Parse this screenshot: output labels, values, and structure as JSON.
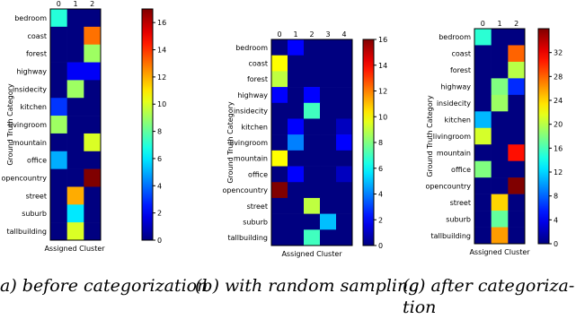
{
  "chart_data": [
    {
      "type": "heatmap",
      "caption": "a) before categorization",
      "xlabel": "Assigned Cluster",
      "ylabel": "Ground Truth Category",
      "x_ticks": [
        "0",
        "1",
        "2"
      ],
      "rows": [
        "bedroom",
        "coast",
        "forest",
        "highway",
        "insidecity",
        "kitchen",
        "livingroom",
        "mountain",
        "office",
        "opencountry",
        "street",
        "suburb",
        "tallbuilding"
      ],
      "values": [
        [
          7,
          0,
          0
        ],
        [
          0,
          0,
          13
        ],
        [
          0,
          0,
          9
        ],
        [
          0,
          2,
          2
        ],
        [
          0,
          9,
          0
        ],
        [
          3,
          0,
          0
        ],
        [
          9,
          0,
          0
        ],
        [
          0,
          0,
          10
        ],
        [
          5,
          0,
          0
        ],
        [
          0,
          0,
          17
        ],
        [
          0,
          12,
          0
        ],
        [
          0,
          6,
          0
        ],
        [
          0,
          10,
          0
        ]
      ],
      "colorbar": {
        "min": 0,
        "max": 17,
        "ticks": [
          0,
          2,
          4,
          6,
          8,
          10,
          12,
          14,
          16
        ]
      }
    },
    {
      "type": "heatmap",
      "caption": "(b) with random sampling",
      "xlabel": "Assigned Cluster",
      "ylabel": "Ground Truth Category",
      "x_ticks": [
        "0",
        "1",
        "2",
        "3",
        "4"
      ],
      "rows": [
        "bedroom",
        "coast",
        "forest",
        "highway",
        "insidecity",
        "kitchen",
        "livingroom",
        "mountain",
        "office",
        "opencountry",
        "street",
        "suburb",
        "tallbuilding"
      ],
      "values": [
        [
          0,
          2,
          0,
          0,
          0
        ],
        [
          10,
          0,
          0,
          0,
          0
        ],
        [
          9,
          0,
          0,
          0,
          0
        ],
        [
          2,
          0,
          2,
          0,
          0
        ],
        [
          0,
          0,
          7,
          0,
          0
        ],
        [
          0,
          2,
          0,
          0,
          1
        ],
        [
          0,
          4,
          0,
          0,
          2
        ],
        [
          10,
          0,
          0,
          0,
          0
        ],
        [
          0,
          2,
          0,
          0,
          1
        ],
        [
          16,
          0,
          0,
          0,
          0
        ],
        [
          0,
          0,
          9,
          0,
          0
        ],
        [
          0,
          0,
          0,
          5,
          0
        ],
        [
          0,
          0,
          7,
          0,
          0
        ]
      ],
      "colorbar": {
        "min": 0,
        "max": 16,
        "ticks": [
          0,
          2,
          4,
          6,
          8,
          10,
          12,
          14,
          16
        ]
      }
    },
    {
      "type": "heatmap",
      "caption": "(c)  after  categoriza-tion",
      "xlabel": "Assigned Cluster",
      "ylabel": "Ground Truth Category",
      "x_ticks": [
        "0",
        "1",
        "2"
      ],
      "rows": [
        "bedroom",
        "coast",
        "forest",
        "highway",
        "insidecity",
        "kitchen",
        "livingroom",
        "mountain",
        "office",
        "opencountry",
        "street",
        "suburb",
        "tallbuilding"
      ],
      "values": [
        [
          15,
          0,
          0
        ],
        [
          0,
          0,
          28
        ],
        [
          0,
          0,
          20
        ],
        [
          0,
          18,
          6
        ],
        [
          0,
          19,
          0
        ],
        [
          11,
          0,
          0
        ],
        [
          21,
          0,
          0
        ],
        [
          0,
          0,
          31
        ],
        [
          18,
          0,
          0
        ],
        [
          0,
          0,
          36
        ],
        [
          0,
          24,
          0
        ],
        [
          0,
          17,
          0
        ],
        [
          0,
          26,
          0
        ]
      ],
      "colorbar": {
        "min": 0,
        "max": 36,
        "ticks": [
          0,
          4,
          8,
          12,
          16,
          20,
          24,
          28,
          32
        ]
      }
    }
  ],
  "captions": {
    "a": "a) before categorization",
    "b": "(b) with random sampling",
    "c_line1": "(c)   after   categoriza-",
    "c_line2": "tion"
  }
}
